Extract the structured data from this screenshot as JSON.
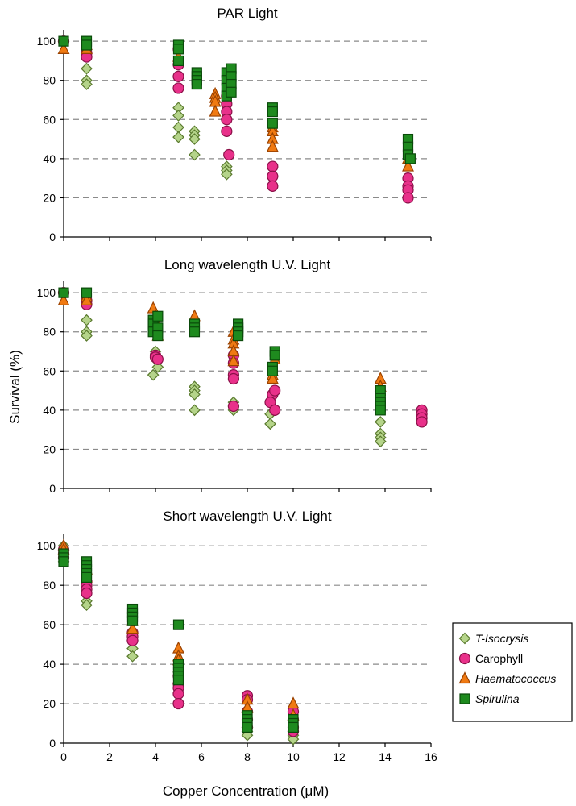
{
  "colors": {
    "T-Isocrysis": {
      "fill": "#b5d48a",
      "stroke": "#5a7a2e"
    },
    "Carophyll": {
      "fill": "#e8318a",
      "stroke": "#8a1048"
    },
    "Haematococcus": {
      "fill": "#f07a12",
      "stroke": "#9a4200"
    },
    "Spirulina": {
      "fill": "#1e8a1e",
      "stroke": "#0a4a0a"
    }
  },
  "shared_axes": {
    "xlabel": "Copper Concentration (μM)",
    "ylabel": "Survival (%)",
    "xlim": [
      0,
      16
    ],
    "ylim": [
      0,
      105
    ],
    "xticks": [
      "0",
      "2",
      "4",
      "6",
      "8",
      "10",
      "12",
      "14",
      "16"
    ],
    "yticks": [
      "0",
      "20",
      "40",
      "60",
      "80",
      "100"
    ]
  },
  "legend": {
    "position": "right, beside bottom panel",
    "entries": [
      {
        "label": "T-Isocrysis",
        "italic": true,
        "marker": "diamond"
      },
      {
        "label": "Carophyll",
        "italic": false,
        "marker": "circle"
      },
      {
        "label": "Haematococcus",
        "italic": true,
        "marker": "triangle"
      },
      {
        "label": "Spirulina",
        "italic": true,
        "marker": "square"
      }
    ]
  },
  "chart_data": [
    {
      "type": "scatter",
      "title": "PAR Light",
      "xlabel": "",
      "ylabel": "",
      "xlim": [
        0,
        16
      ],
      "ylim": [
        0,
        105
      ],
      "series": [
        {
          "name": "T-Isocrysis",
          "marker": "diamond",
          "points": [
            [
              0,
              100
            ],
            [
              1,
              86
            ],
            [
              1,
              80
            ],
            [
              1,
              78
            ],
            [
              5,
              66
            ],
            [
              5,
              62
            ],
            [
              5,
              56
            ],
            [
              5,
              51
            ],
            [
              5.7,
              54
            ],
            [
              5.7,
              52
            ],
            [
              5.7,
              50
            ],
            [
              5.7,
              42
            ],
            [
              7.1,
              36
            ],
            [
              7.1,
              34
            ],
            [
              7.1,
              32
            ]
          ]
        },
        {
          "name": "Carophyll",
          "marker": "circle",
          "points": [
            [
              0,
              100
            ],
            [
              1,
              94
            ],
            [
              1,
              92
            ],
            [
              5,
              96
            ],
            [
              5,
              88
            ],
            [
              5,
              82
            ],
            [
              5,
              76
            ],
            [
              7.1,
              72
            ],
            [
              7.1,
              68
            ],
            [
              7.1,
              64
            ],
            [
              7.1,
              60
            ],
            [
              7.1,
              54
            ],
            [
              7.2,
              42
            ],
            [
              9.1,
              36
            ],
            [
              9.1,
              31
            ],
            [
              9.1,
              26
            ],
            [
              15,
              30
            ],
            [
              15,
              26
            ],
            [
              15,
              24
            ],
            [
              15,
              20
            ]
          ]
        },
        {
          "name": "Haematococcus",
          "marker": "triangle",
          "points": [
            [
              0,
              96
            ],
            [
              1,
              98
            ],
            [
              1,
              96
            ],
            [
              5,
              92
            ],
            [
              6.6,
              73
            ],
            [
              6.6,
              71
            ],
            [
              6.6,
              69
            ],
            [
              6.6,
              64
            ],
            [
              9.1,
              56
            ],
            [
              9.1,
              54
            ],
            [
              9.1,
              50
            ],
            [
              9.1,
              46
            ],
            [
              15,
              40
            ],
            [
              15,
              36
            ]
          ]
        },
        {
          "name": "Spirulina",
          "marker": "square",
          "points": [
            [
              0,
              100
            ],
            [
              1,
              100
            ],
            [
              1,
              98
            ],
            [
              5,
              98
            ],
            [
              5,
              96
            ],
            [
              5,
              90
            ],
            [
              5.8,
              84
            ],
            [
              5.8,
              82
            ],
            [
              5.8,
              80
            ],
            [
              5.8,
              78
            ],
            [
              7.1,
              84
            ],
            [
              7.1,
              80
            ],
            [
              7.1,
              76
            ],
            [
              7.1,
              72
            ],
            [
              7.3,
              86
            ],
            [
              7.3,
              82
            ],
            [
              7.3,
              78
            ],
            [
              7.3,
              74
            ],
            [
              9.1,
              66
            ],
            [
              9.1,
              64
            ],
            [
              9.1,
              58
            ],
            [
              15,
              50
            ],
            [
              15,
              46
            ],
            [
              15,
              42
            ],
            [
              15.1,
              40
            ]
          ]
        }
      ]
    },
    {
      "type": "scatter",
      "title": "Long wavelength U.V. Light",
      "xlabel": "",
      "ylabel": "Survival (%)",
      "xlim": [
        0,
        16
      ],
      "ylim": [
        0,
        105
      ],
      "series": [
        {
          "name": "T-Isocrysis",
          "marker": "diamond",
          "points": [
            [
              0,
              100
            ],
            [
              1,
              86
            ],
            [
              1,
              80
            ],
            [
              1,
              78
            ],
            [
              4,
              70
            ],
            [
              4,
              66
            ],
            [
              4.1,
              62
            ],
            [
              3.9,
              58
            ],
            [
              5.7,
              52
            ],
            [
              5.7,
              50
            ],
            [
              5.7,
              48
            ],
            [
              5.7,
              40
            ],
            [
              7.4,
              44
            ],
            [
              7.4,
              42
            ],
            [
              7.4,
              40
            ],
            [
              9,
              38
            ],
            [
              9,
              33
            ],
            [
              13.8,
              34
            ],
            [
              13.8,
              28
            ],
            [
              13.8,
              26
            ],
            [
              13.8,
              24
            ]
          ]
        },
        {
          "name": "Carophyll",
          "marker": "circle",
          "points": [
            [
              0,
              100
            ],
            [
              1,
              96
            ],
            [
              1,
              94
            ],
            [
              4,
              68
            ],
            [
              4,
              67
            ],
            [
              4.1,
              66
            ],
            [
              7.4,
              68
            ],
            [
              7.4,
              64
            ],
            [
              7.4,
              58
            ],
            [
              7.4,
              56
            ],
            [
              7.4,
              42
            ],
            [
              9.1,
              48
            ],
            [
              9.2,
              50
            ],
            [
              9,
              44
            ],
            [
              9.2,
              40
            ],
            [
              15.6,
              40
            ],
            [
              15.6,
              38
            ],
            [
              15.6,
              36
            ],
            [
              15.6,
              34
            ]
          ]
        },
        {
          "name": "Haematococcus",
          "marker": "triangle",
          "points": [
            [
              0,
              96
            ],
            [
              1,
              98
            ],
            [
              1,
              96
            ],
            [
              3.9,
              92
            ],
            [
              4,
              88
            ],
            [
              4,
              86
            ],
            [
              4.1,
              78
            ],
            [
              5.7,
              88
            ],
            [
              7.4,
              80
            ],
            [
              7.4,
              76
            ],
            [
              7.4,
              74
            ],
            [
              7.4,
              70
            ],
            [
              7.4,
              65
            ],
            [
              9.1,
              60
            ],
            [
              9.1,
              58
            ],
            [
              9.1,
              56
            ],
            [
              9.2,
              66
            ],
            [
              13.8,
              56
            ],
            [
              13.8,
              52
            ]
          ]
        },
        {
          "name": "Spirulina",
          "marker": "square",
          "points": [
            [
              0,
              100
            ],
            [
              1,
              100
            ],
            [
              3.9,
              86
            ],
            [
              3.9,
              84
            ],
            [
              3.9,
              80
            ],
            [
              4.1,
              88
            ],
            [
              4.1,
              82
            ],
            [
              4.1,
              78
            ],
            [
              5.7,
              84
            ],
            [
              5.7,
              82
            ],
            [
              5.7,
              80
            ],
            [
              7.6,
              84
            ],
            [
              7.6,
              82
            ],
            [
              7.6,
              80
            ],
            [
              7.6,
              78
            ],
            [
              9.1,
              62
            ],
            [
              9.1,
              60
            ],
            [
              9.2,
              70
            ],
            [
              9.2,
              68
            ],
            [
              13.8,
              50
            ],
            [
              13.8,
              46
            ],
            [
              13.8,
              44
            ],
            [
              13.8,
              42
            ],
            [
              13.8,
              40
            ]
          ]
        }
      ]
    },
    {
      "type": "scatter",
      "title": "Short wavelength U.V. Light",
      "xlabel": "Copper Concentration (μM)",
      "ylabel": "",
      "xlim": [
        0,
        16
      ],
      "ylim": [
        0,
        105
      ],
      "series": [
        {
          "name": "T-Isocrysis",
          "marker": "diamond",
          "points": [
            [
              0,
              100
            ],
            [
              0,
              92
            ],
            [
              1,
              72
            ],
            [
              1,
              70
            ],
            [
              3,
              52
            ],
            [
              3,
              48
            ],
            [
              3,
              44
            ],
            [
              5,
              36
            ],
            [
              5,
              30
            ],
            [
              8,
              8
            ],
            [
              8,
              6
            ],
            [
              8,
              4
            ],
            [
              10,
              6
            ],
            [
              10,
              4
            ],
            [
              10,
              2
            ]
          ]
        },
        {
          "name": "Carophyll",
          "marker": "circle",
          "points": [
            [
              0,
              98
            ],
            [
              0,
              96
            ],
            [
              0,
              94
            ],
            [
              1,
              82
            ],
            [
              1,
              80
            ],
            [
              1,
              78
            ],
            [
              1,
              76
            ],
            [
              3,
              56
            ],
            [
              3,
              54
            ],
            [
              3,
              52
            ],
            [
              5,
              34
            ],
            [
              5,
              30
            ],
            [
              5,
              28
            ],
            [
              5,
              25
            ],
            [
              5,
              20
            ],
            [
              8,
              24
            ],
            [
              8,
              22
            ],
            [
              8,
              16
            ],
            [
              8,
              12
            ],
            [
              8,
              8
            ],
            [
              10,
              16
            ],
            [
              10,
              12
            ],
            [
              10,
              8
            ],
            [
              10,
              6
            ]
          ]
        },
        {
          "name": "Haematococcus",
          "marker": "triangle",
          "points": [
            [
              0,
              100
            ],
            [
              0,
              98
            ],
            [
              1,
              88
            ],
            [
              1,
              84
            ],
            [
              3,
              62
            ],
            [
              3,
              58
            ],
            [
              5,
              48
            ],
            [
              5,
              44
            ],
            [
              5,
              42
            ],
            [
              8,
              22
            ],
            [
              8,
              18
            ],
            [
              10,
              20
            ],
            [
              10,
              14
            ]
          ]
        },
        {
          "name": "Spirulina",
          "marker": "square",
          "points": [
            [
              0,
              96
            ],
            [
              0,
              94
            ],
            [
              0,
              92
            ],
            [
              1,
              92
            ],
            [
              1,
              90
            ],
            [
              1,
              88
            ],
            [
              1,
              86
            ],
            [
              1,
              84
            ],
            [
              3,
              68
            ],
            [
              3,
              66
            ],
            [
              3,
              64
            ],
            [
              3,
              62
            ],
            [
              5,
              60
            ],
            [
              5,
              40
            ],
            [
              5,
              38
            ],
            [
              5,
              36
            ],
            [
              5,
              34
            ],
            [
              5,
              32
            ],
            [
              8,
              14
            ],
            [
              8,
              12
            ],
            [
              8,
              10
            ],
            [
              8,
              8
            ],
            [
              10,
              12
            ],
            [
              10,
              10
            ],
            [
              10,
              8
            ]
          ]
        }
      ]
    }
  ]
}
